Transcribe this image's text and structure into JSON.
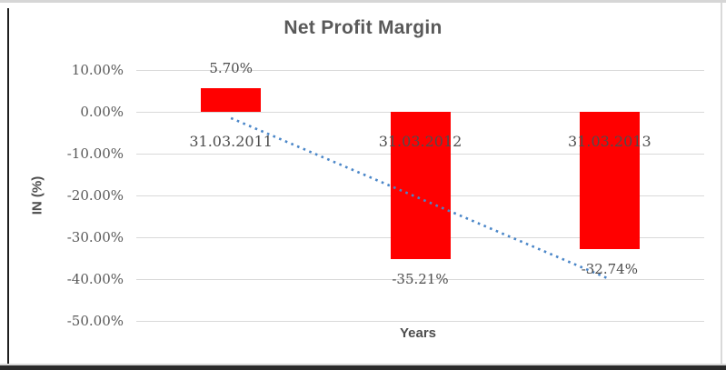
{
  "chart_data": {
    "type": "bar",
    "title": "Net Profit Margin",
    "xlabel": "Years",
    "ylabel": "IN (%)",
    "categories": [
      "31.03.2011",
      "31.03.2012",
      "31.03.2013"
    ],
    "values": [
      5.7,
      -35.21,
      -32.74
    ],
    "data_labels": [
      "5.70%",
      "-35.21%",
      "-32.74%"
    ],
    "y_ticks": [
      {
        "label": "10.00%",
        "value": 10
      },
      {
        "label": "0.00%",
        "value": 0
      },
      {
        "label": "-10.00%",
        "value": -10
      },
      {
        "label": "-20.00%",
        "value": -20
      },
      {
        "label": "-30.00%",
        "value": -30
      },
      {
        "label": "-40.00%",
        "value": -40
      },
      {
        "label": "-50.00%",
        "value": -50
      }
    ],
    "ylim": [
      -50,
      10
    ],
    "grid": true,
    "legend": "none",
    "bar_color": "#FF0000",
    "gridline_color": "#D9D9D9",
    "label_color": "#595959",
    "trendline": {
      "type": "linear",
      "style": "dotted",
      "color": "#4A86C8",
      "start_value": -1.5,
      "end_value": -40.0
    }
  }
}
